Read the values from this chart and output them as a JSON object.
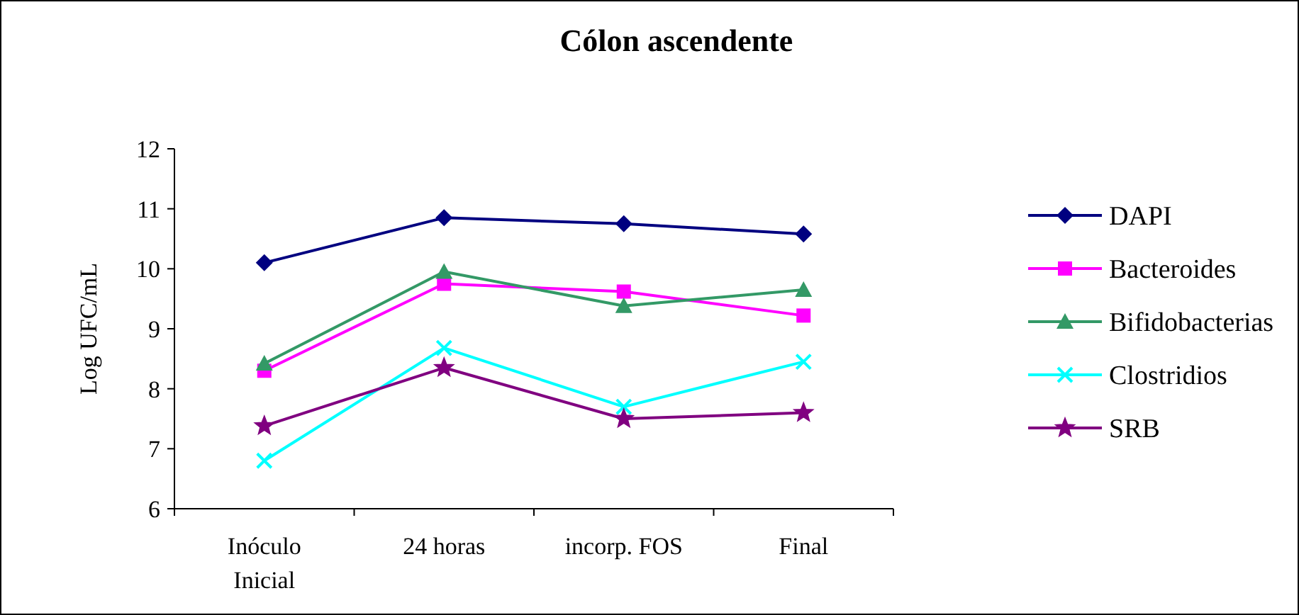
{
  "chart_data": {
    "type": "line",
    "title": "Cólon ascendente",
    "ylabel": "Log UFC/mL",
    "categories": [
      "Inóculo Inicial",
      "24 horas",
      "incorp. FOS",
      "Final"
    ],
    "ylim": [
      6,
      12
    ],
    "yticks": [
      6,
      7,
      8,
      9,
      10,
      11,
      12
    ],
    "grid": false,
    "legend": "right",
    "line_style": "solid",
    "series": [
      {
        "name": "DAPI",
        "color": "#000080",
        "marker": "diamond",
        "values": [
          10.1,
          10.85,
          10.75,
          10.58
        ]
      },
      {
        "name": "Bacteroides",
        "color": "#ff00ff",
        "marker": "square",
        "values": [
          8.3,
          9.75,
          9.62,
          9.22
        ]
      },
      {
        "name": "Bifidobacterias",
        "color": "#339966",
        "marker": "triangle",
        "values": [
          8.42,
          9.95,
          9.38,
          9.65
        ]
      },
      {
        "name": "Clostridios",
        "color": "#00ffff",
        "marker": "cross",
        "values": [
          6.8,
          8.68,
          7.7,
          8.45
        ]
      },
      {
        "name": "SRB",
        "color": "#800080",
        "marker": "star",
        "values": [
          7.38,
          8.35,
          7.5,
          7.6
        ]
      }
    ]
  }
}
